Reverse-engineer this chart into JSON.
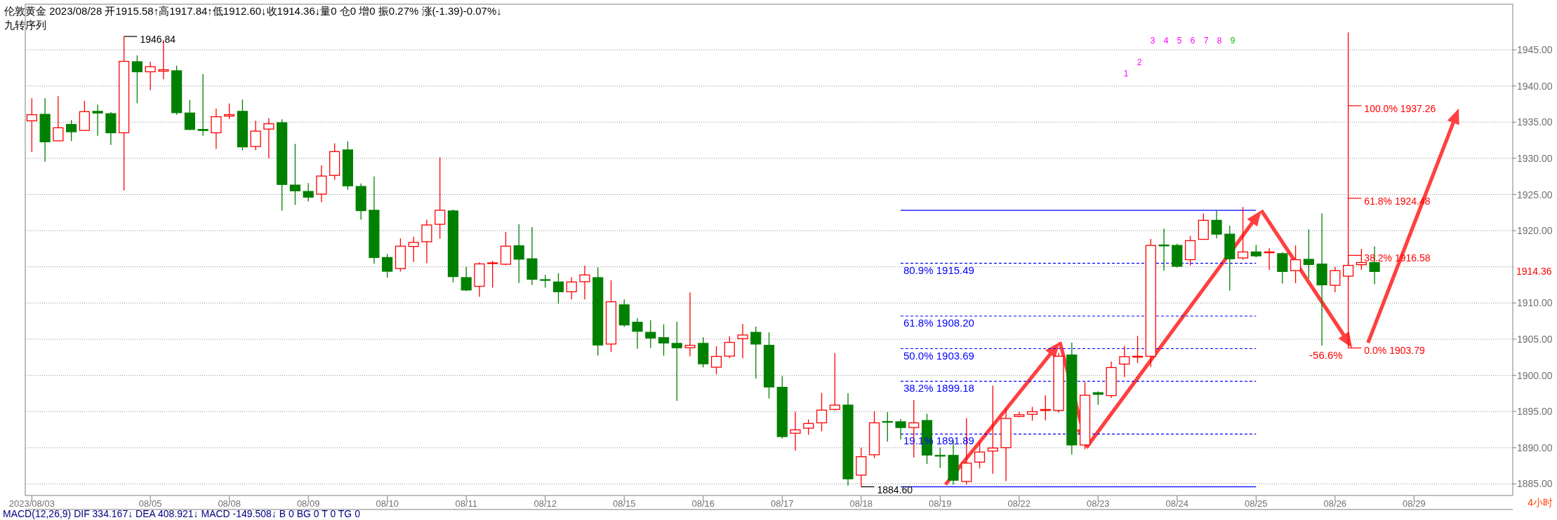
{
  "chart_data": {
    "type": "candlestick",
    "title": "伦敦黄金 2023/08/28 开1915.58↑高1917.84↑低1912.60↓收1914.36↓量0 仓0 增0 振0.27% 涨(-1.39)-0.07%↓",
    "subtitle": "九转序列",
    "categories": [
      "2023/08/03",
      null,
      null,
      null,
      null,
      null,
      null,
      null,
      null,
      "08/05",
      null,
      null,
      null,
      null,
      null,
      "08/08",
      null,
      null,
      null,
      null,
      null,
      "08/09",
      null,
      null,
      null,
      null,
      null,
      "08/10",
      null,
      null,
      null,
      null,
      null,
      "08/11",
      null,
      null,
      null,
      null,
      null,
      "08/12",
      null,
      null,
      null,
      null,
      null,
      "08/15",
      null,
      null,
      null,
      null,
      null,
      "08/16",
      null,
      null,
      null,
      null,
      null,
      "08/17",
      null,
      null,
      null,
      null,
      null,
      "08/18",
      null,
      null,
      null,
      null,
      null,
      "08/19",
      null,
      null,
      null,
      null,
      null,
      "08/22",
      null,
      null,
      null,
      null,
      null,
      "08/23",
      null,
      null,
      null,
      null,
      null,
      "08/24",
      null,
      null,
      null,
      null,
      null,
      "08/25",
      null,
      null,
      null,
      null,
      null,
      "08/26",
      null,
      null,
      null,
      null,
      null,
      "08/29",
      null,
      null,
      null,
      null,
      null,
      null,
      null
    ],
    "ohlc": [
      [
        1935.19,
        1938.3,
        1930.89,
        1936.03
      ],
      [
        1936.08,
        1938.3,
        1929.54,
        1932.28
      ],
      [
        1932.42,
        1938.58,
        1932.42,
        1934.22
      ],
      [
        1934.68,
        1935.29,
        1932.37,
        1933.67
      ],
      [
        1933.85,
        1937.93,
        1933.85,
        1936.45
      ],
      [
        1936.49,
        1937.42,
        1933.11,
        1936.26
      ],
      [
        1936.17,
        1936.4,
        1931.86,
        1933.53
      ],
      [
        1933.53,
        1946.84,
        1925.56,
        1943.4
      ],
      [
        1943.35,
        1944.23,
        1937.6,
        1941.96
      ],
      [
        1941.96,
        1943.35,
        1939.41,
        1942.66
      ],
      [
        1942.05,
        1946.32,
        1940.94,
        1942.24
      ],
      [
        1942.1,
        1942.79,
        1936.03,
        1936.31
      ],
      [
        1936.26,
        1938.07,
        1933.9,
        1933.99
      ],
      [
        1933.99,
        1941.64,
        1933.11,
        1933.85
      ],
      [
        1933.53,
        1936.86,
        1931.3,
        1935.75
      ],
      [
        1935.84,
        1937.56,
        1935.43,
        1936.03
      ],
      [
        1936.49,
        1938.11,
        1931.12,
        1931.58
      ],
      [
        1931.63,
        1935.19,
        1931.12,
        1933.76
      ],
      [
        1934.04,
        1935.57,
        1930.0,
        1934.78
      ],
      [
        1934.92,
        1935.38,
        1922.77,
        1926.39
      ],
      [
        1926.3,
        1931.99,
        1923.56,
        1925.51
      ],
      [
        1925.42,
        1926.58,
        1924.03,
        1924.63
      ],
      [
        1925.05,
        1929.03,
        1923.93,
        1927.55
      ],
      [
        1927.64,
        1932.08,
        1927.04,
        1930.93
      ],
      [
        1931.16,
        1932.32,
        1925.65,
        1926.2
      ],
      [
        1926.11,
        1926.53,
        1921.52,
        1922.77
      ],
      [
        1922.82,
        1927.5,
        1915.41,
        1916.29
      ],
      [
        1916.29,
        1916.8,
        1913.51,
        1914.39
      ],
      [
        1914.76,
        1918.93,
        1914.34,
        1917.86
      ],
      [
        1917.82,
        1919.16,
        1915.69,
        1918.38
      ],
      [
        1918.47,
        1921.52,
        1915.5,
        1920.79
      ],
      [
        1920.88,
        1930.1,
        1918.88,
        1922.82
      ],
      [
        1922.73,
        1922.92,
        1912.86,
        1913.65
      ],
      [
        1913.51,
        1914.99,
        1911.66,
        1911.8
      ],
      [
        1912.31,
        1915.64,
        1910.87,
        1915.41
      ],
      [
        1915.45,
        1915.82,
        1912.12,
        1915.55
      ],
      [
        1915.36,
        1919.81,
        1915.22,
        1917.86
      ],
      [
        1917.91,
        1920.88,
        1912.77,
        1916.06
      ],
      [
        1916.11,
        1920.51,
        1912.49,
        1913.28
      ],
      [
        1913.23,
        1913.88,
        1912.12,
        1913.14
      ],
      [
        1912.91,
        1914.13,
        1909.89,
        1911.56
      ],
      [
        1911.56,
        1913.58,
        1910.49,
        1912.91
      ],
      [
        1912.95,
        1915.15,
        1910.49,
        1913.88
      ],
      [
        1913.51,
        1914.94,
        1902.76,
        1904.19
      ],
      [
        1904.33,
        1913.14,
        1903.22,
        1910.17
      ],
      [
        1909.75,
        1910.49,
        1906.69,
        1906.97
      ],
      [
        1907.34,
        1907.94,
        1903.68,
        1906.09
      ],
      [
        1905.95,
        1907.62,
        1903.78,
        1905.16
      ],
      [
        1905.21,
        1907.06,
        1902.71,
        1904.47
      ],
      [
        1904.42,
        1907.43,
        1896.47,
        1903.82
      ],
      [
        1903.82,
        1911.46,
        1902.62,
        1904.15
      ],
      [
        1904.42,
        1905.26,
        1901.09,
        1901.6
      ],
      [
        1901.13,
        1904.01,
        1900.16,
        1902.62
      ],
      [
        1902.66,
        1905.4,
        1902.39,
        1904.56
      ],
      [
        1905.07,
        1907.11,
        1902.39,
        1905.58
      ],
      [
        1905.95,
        1906.74,
        1899.57,
        1904.33
      ],
      [
        1904.15,
        1905.95,
        1896.82,
        1898.4
      ],
      [
        1898.35,
        1899.89,
        1891.26,
        1891.54
      ],
      [
        1892.0,
        1894.97,
        1889.59,
        1892.47
      ],
      [
        1892.7,
        1893.9,
        1891.77,
        1893.35
      ],
      [
        1893.44,
        1897.57,
        1892.28,
        1895.2
      ],
      [
        1895.29,
        1903.08,
        1895.15,
        1895.89
      ],
      [
        1895.89,
        1897.52,
        1884.77,
        1885.7
      ],
      [
        1886.21,
        1890.01,
        1884.6,
        1888.76
      ],
      [
        1889.03,
        1895.06,
        1888.57,
        1893.44
      ],
      [
        1893.62,
        1894.92,
        1890.85,
        1893.53
      ],
      [
        1893.58,
        1893.95,
        1891.12,
        1892.79
      ],
      [
        1892.79,
        1896.59,
        1888.66,
        1893.44
      ],
      [
        1893.76,
        1894.69,
        1887.77,
        1888.99
      ],
      [
        1888.94,
        1890.01,
        1887.19,
        1888.85
      ],
      [
        1888.94,
        1890.99,
        1884.91,
        1885.51
      ],
      [
        1885.33,
        1894.09,
        1884.91,
        1887.87
      ],
      [
        1888.01,
        1890.8,
        1887.14,
        1889.4
      ],
      [
        1889.54,
        1898.59,
        1886.4,
        1889.96
      ],
      [
        1890.01,
        1895.43,
        1885.38,
        1894.04
      ],
      [
        1894.32,
        1894.98,
        1894.2,
        1894.56
      ],
      [
        1894.62,
        1895.64,
        1893.73,
        1894.98
      ],
      [
        1895.16,
        1897.25,
        1893.79,
        1895.28
      ],
      [
        1895.16,
        1903.12,
        1894.86,
        1902.64
      ],
      [
        1902.82,
        1904.55,
        1889.06,
        1890.38
      ],
      [
        1890.38,
        1899.05,
        1889.78,
        1897.25
      ],
      [
        1897.61,
        1897.79,
        1895.94,
        1897.38
      ],
      [
        1897.2,
        1901.92,
        1896.9,
        1901.08
      ],
      [
        1901.56,
        1904.08,
        1899.77,
        1902.58
      ],
      [
        1902.52,
        1905.45,
        1901.68,
        1902.64
      ],
      [
        1902.64,
        1918.86,
        1901.14,
        1917.96
      ],
      [
        1918.02,
        1920.29,
        1914.48,
        1917.9
      ],
      [
        1917.96,
        1918.2,
        1914.9,
        1915.08
      ],
      [
        1915.99,
        1919.28,
        1915.2,
        1918.62
      ],
      [
        1918.8,
        1922.39,
        1918.8,
        1921.43
      ],
      [
        1921.43,
        1922.81,
        1918.92,
        1919.52
      ],
      [
        1919.52,
        1920.71,
        1911.73,
        1916.11
      ],
      [
        1916.23,
        1923.28,
        1916.0,
        1917.06
      ],
      [
        1917.06,
        1918.02,
        1916.3,
        1916.52
      ],
      [
        1916.95,
        1917.6,
        1914.6,
        1917.06
      ],
      [
        1916.82,
        1917.0,
        1912.69,
        1914.36
      ],
      [
        1914.48,
        1917.96,
        1912.75,
        1915.99
      ],
      [
        1916.04,
        1920.17,
        1913.41,
        1915.32
      ],
      [
        1915.38,
        1922.39,
        1904.14,
        1912.51
      ],
      [
        1912.45,
        1915.0,
        1911.49,
        1914.48
      ],
      [
        1913.71,
        1916.0,
        1913.3,
        1915.2
      ],
      [
        1915.3,
        1917.48,
        1914.6,
        1915.6
      ],
      [
        1915.58,
        1917.84,
        1912.6,
        1914.36
      ],
      null,
      null,
      null,
      null,
      null,
      null,
      null,
      null,
      null,
      null
    ],
    "series": [
      {
        "type": "line",
        "name": "1946.84",
        "color": "#000000",
        "values": [
          null,
          null,
          null,
          null,
          null,
          null,
          null,
          1946.84,
          1946.84,
          null,
          null,
          null,
          null,
          null,
          null,
          null,
          null,
          null,
          null,
          null,
          null,
          null,
          null,
          null,
          null,
          null,
          null,
          null,
          null,
          null,
          null,
          null,
          null,
          null,
          null,
          null,
          null,
          null,
          null,
          null,
          null,
          null,
          null,
          null,
          null,
          null,
          null,
          null,
          null,
          null,
          null,
          null,
          null,
          null,
          null,
          null,
          null,
          null,
          null,
          null,
          null,
          null,
          null,
          null,
          null,
          null,
          null,
          null,
          null,
          null,
          null,
          null,
          null,
          null,
          null,
          null,
          null,
          null,
          null,
          null,
          null,
          null,
          null,
          null,
          null,
          null,
          null,
          null,
          null,
          null,
          null,
          null,
          null,
          null,
          null,
          null,
          null,
          null,
          null,
          null,
          null,
          null,
          null,
          null,
          null,
          null,
          null,
          null,
          null,
          null,
          null,
          null,
          null
        ]
      },
      {
        "type": "line",
        "name": "1884.60",
        "color": "#000000",
        "values": [
          null,
          null,
          null,
          null,
          null,
          null,
          null,
          null,
          null,
          null,
          null,
          null,
          null,
          null,
          null,
          null,
          null,
          null,
          null,
          null,
          null,
          null,
          null,
          null,
          null,
          null,
          null,
          null,
          null,
          null,
          null,
          null,
          null,
          null,
          null,
          null,
          null,
          null,
          null,
          null,
          null,
          null,
          null,
          null,
          null,
          null,
          null,
          null,
          null,
          null,
          null,
          null,
          null,
          null,
          null,
          null,
          null,
          null,
          null,
          null,
          null,
          null,
          null,
          1884.6,
          1884.6,
          null,
          null,
          null,
          null,
          null,
          null,
          null,
          null,
          null,
          null,
          null,
          null,
          null,
          null,
          null,
          null,
          null,
          null,
          null,
          null,
          null,
          null,
          null,
          null,
          null,
          null,
          null,
          null,
          null,
          null,
          null,
          null,
          null,
          null,
          null,
          null,
          null,
          null,
          null,
          null,
          null,
          null,
          null,
          null,
          null,
          null,
          null,
          null
        ]
      },
      {
        "type": "line",
        "color": "#0000ff",
        "values": [
          null,
          null,
          null,
          null,
          null,
          null,
          null,
          null,
          null,
          null,
          null,
          null,
          null,
          null,
          null,
          null,
          null,
          null,
          null,
          null,
          null,
          null,
          null,
          null,
          null,
          null,
          null,
          null,
          null,
          null,
          null,
          null,
          null,
          null,
          null,
          null,
          null,
          null,
          null,
          null,
          null,
          null,
          null,
          null,
          null,
          null,
          null,
          null,
          null,
          null,
          null,
          null,
          null,
          null,
          null,
          null,
          null,
          null,
          null,
          null,
          null,
          null,
          null,
          null,
          null,
          null,
          1922.8,
          null,
          null,
          null,
          null,
          null,
          null,
          null,
          null,
          null,
          null,
          null,
          null,
          null,
          null,
          null,
          null,
          null,
          null,
          null,
          null,
          null,
          null,
          null,
          null,
          null,
          null,
          1922.8,
          null,
          null,
          null,
          null,
          null,
          null,
          null,
          null,
          null,
          null,
          null,
          null,
          null,
          null,
          null,
          null,
          null,
          null,
          null
        ]
      },
      {
        "type": "line",
        "color": "#0000ff",
        "values": [
          null,
          null,
          null,
          null,
          null,
          null,
          null,
          null,
          null,
          null,
          null,
          null,
          null,
          null,
          null,
          null,
          null,
          null,
          null,
          null,
          null,
          null,
          null,
          null,
          null,
          null,
          null,
          null,
          null,
          null,
          null,
          null,
          null,
          null,
          null,
          null,
          null,
          null,
          null,
          null,
          null,
          null,
          null,
          null,
          null,
          null,
          null,
          null,
          null,
          null,
          null,
          null,
          null,
          null,
          null,
          null,
          null,
          null,
          null,
          null,
          null,
          null,
          null,
          null,
          null,
          null,
          1884.6,
          null,
          null,
          null,
          null,
          null,
          null,
          null,
          null,
          null,
          null,
          null,
          null,
          null,
          null,
          null,
          null,
          null,
          null,
          null,
          null,
          null,
          null,
          null,
          null,
          null,
          null,
          1884.6,
          null,
          null,
          null,
          null,
          null,
          null,
          null,
          null,
          null,
          null,
          null,
          null,
          null,
          null,
          null,
          null,
          null,
          null,
          null
        ]
      },
      {
        "type": "line",
        "name": "80.9% 1915.49",
        "color": "#0000ff",
        "line_style": "dashed",
        "values": [
          null,
          null,
          null,
          null,
          null,
          null,
          null,
          null,
          null,
          null,
          null,
          null,
          null,
          null,
          null,
          null,
          null,
          null,
          null,
          null,
          null,
          null,
          null,
          null,
          null,
          null,
          null,
          null,
          null,
          null,
          null,
          null,
          null,
          null,
          null,
          null,
          null,
          null,
          null,
          null,
          null,
          null,
          null,
          null,
          null,
          null,
          null,
          null,
          null,
          null,
          null,
          null,
          null,
          null,
          null,
          null,
          null,
          null,
          null,
          null,
          null,
          null,
          null,
          null,
          null,
          null,
          1915.49,
          null,
          null,
          null,
          null,
          null,
          null,
          null,
          null,
          null,
          null,
          null,
          null,
          null,
          null,
          null,
          null,
          null,
          null,
          null,
          null,
          null,
          null,
          null,
          null,
          null,
          null,
          1915.49,
          null,
          null,
          null,
          null,
          null,
          null,
          null,
          null,
          null,
          null,
          null,
          null,
          null,
          null,
          null,
          null,
          null,
          null,
          null
        ]
      },
      {
        "type": "line",
        "name": "61.8% 1908.20",
        "color": "#0000ff",
        "line_style": "dashed",
        "values": [
          null,
          null,
          null,
          null,
          null,
          null,
          null,
          null,
          null,
          null,
          null,
          null,
          null,
          null,
          null,
          null,
          null,
          null,
          null,
          null,
          null,
          null,
          null,
          null,
          null,
          null,
          null,
          null,
          null,
          null,
          null,
          null,
          null,
          null,
          null,
          null,
          null,
          null,
          null,
          null,
          null,
          null,
          null,
          null,
          null,
          null,
          null,
          null,
          null,
          null,
          null,
          null,
          null,
          null,
          null,
          null,
          null,
          null,
          null,
          null,
          null,
          null,
          null,
          null,
          null,
          null,
          1908.2,
          null,
          null,
          null,
          null,
          null,
          null,
          null,
          null,
          null,
          null,
          null,
          null,
          null,
          null,
          null,
          null,
          null,
          null,
          null,
          null,
          null,
          null,
          null,
          null,
          null,
          null,
          1908.2,
          null,
          null,
          null,
          null,
          null,
          null,
          null,
          null,
          null,
          null,
          null,
          null,
          null,
          null,
          null,
          null,
          null,
          null,
          null
        ]
      },
      {
        "type": "line",
        "name": "50.0% 1903.69",
        "color": "#0000ff",
        "line_style": "dashed",
        "values": [
          null,
          null,
          null,
          null,
          null,
          null,
          null,
          null,
          null,
          null,
          null,
          null,
          null,
          null,
          null,
          null,
          null,
          null,
          null,
          null,
          null,
          null,
          null,
          null,
          null,
          null,
          null,
          null,
          null,
          null,
          null,
          null,
          null,
          null,
          null,
          null,
          null,
          null,
          null,
          null,
          null,
          null,
          null,
          null,
          null,
          null,
          null,
          null,
          null,
          null,
          null,
          null,
          null,
          null,
          null,
          null,
          null,
          null,
          null,
          null,
          null,
          null,
          null,
          null,
          null,
          null,
          1903.69,
          null,
          null,
          null,
          null,
          null,
          null,
          null,
          null,
          null,
          null,
          null,
          null,
          null,
          null,
          null,
          null,
          null,
          null,
          null,
          null,
          null,
          null,
          null,
          null,
          null,
          null,
          1903.69,
          null,
          null,
          null,
          null,
          null,
          null,
          null,
          null,
          null,
          null,
          null,
          null,
          null,
          null,
          null,
          null,
          null,
          null,
          null
        ]
      },
      {
        "type": "line",
        "name": "38.2% 1899.18",
        "color": "#0000ff",
        "line_style": "dashed",
        "values": [
          null,
          null,
          null,
          null,
          null,
          null,
          null,
          null,
          null,
          null,
          null,
          null,
          null,
          null,
          null,
          null,
          null,
          null,
          null,
          null,
          null,
          null,
          null,
          null,
          null,
          null,
          null,
          null,
          null,
          null,
          null,
          null,
          null,
          null,
          null,
          null,
          null,
          null,
          null,
          null,
          null,
          null,
          null,
          null,
          null,
          null,
          null,
          null,
          null,
          null,
          null,
          null,
          null,
          null,
          null,
          null,
          null,
          null,
          null,
          null,
          null,
          null,
          null,
          null,
          null,
          null,
          1899.18,
          null,
          null,
          null,
          null,
          null,
          null,
          null,
          null,
          null,
          null,
          null,
          null,
          null,
          null,
          null,
          null,
          null,
          null,
          null,
          null,
          null,
          null,
          null,
          null,
          null,
          null,
          1899.18,
          null,
          null,
          null,
          null,
          null,
          null,
          null,
          null,
          null,
          null,
          null,
          null,
          null,
          null,
          null,
          null,
          null,
          null,
          null
        ]
      },
      {
        "type": "line",
        "name": "19.1% 1891.89",
        "color": "#0000ff",
        "line_style": "dashed",
        "values": [
          null,
          null,
          null,
          null,
          null,
          null,
          null,
          null,
          null,
          null,
          null,
          null,
          null,
          null,
          null,
          null,
          null,
          null,
          null,
          null,
          null,
          null,
          null,
          null,
          null,
          null,
          null,
          null,
          null,
          null,
          null,
          null,
          null,
          null,
          null,
          null,
          null,
          null,
          null,
          null,
          null,
          null,
          null,
          null,
          null,
          null,
          null,
          null,
          null,
          null,
          null,
          null,
          null,
          null,
          null,
          null,
          null,
          null,
          null,
          null,
          null,
          null,
          null,
          null,
          null,
          null,
          1891.89,
          null,
          null,
          null,
          null,
          null,
          null,
          null,
          null,
          null,
          null,
          null,
          null,
          null,
          null,
          null,
          null,
          null,
          null,
          null,
          null,
          null,
          null,
          null,
          null,
          null,
          null,
          1891.89,
          null,
          null,
          null,
          null,
          null,
          null,
          null,
          null,
          null,
          null,
          null,
          null,
          null,
          null,
          null,
          null,
          null,
          null,
          null
        ]
      },
      {
        "type": "line",
        "name": "100.0% 1937.26",
        "color": "#ff0000",
        "values": [
          null,
          null,
          null,
          null,
          null,
          null,
          null,
          null,
          null,
          null,
          null,
          null,
          null,
          null,
          null,
          null,
          null,
          null,
          null,
          null,
          null,
          null,
          null,
          null,
          null,
          null,
          null,
          null,
          null,
          null,
          null,
          null,
          null,
          null,
          null,
          null,
          null,
          null,
          null,
          null,
          null,
          null,
          null,
          null,
          null,
          null,
          null,
          null,
          null,
          null,
          null,
          null,
          null,
          null,
          null,
          null,
          null,
          null,
          null,
          null,
          null,
          null,
          null,
          null,
          null,
          null,
          null,
          null,
          null,
          null,
          null,
          null,
          null,
          null,
          null,
          null,
          null,
          null,
          null,
          null,
          null,
          null,
          null,
          null,
          null,
          null,
          null,
          null,
          null,
          null,
          null,
          null,
          null,
          null,
          null,
          null,
          null,
          null,
          null,
          null,
          1937.26,
          1937.26,
          null,
          null,
          null,
          null,
          null,
          null,
          null,
          null,
          null,
          null,
          null
        ]
      },
      {
        "type": "line",
        "name": "61.8% 1924.48",
        "color": "#ff0000",
        "values": [
          null,
          null,
          null,
          null,
          null,
          null,
          null,
          null,
          null,
          null,
          null,
          null,
          null,
          null,
          null,
          null,
          null,
          null,
          null,
          null,
          null,
          null,
          null,
          null,
          null,
          null,
          null,
          null,
          null,
          null,
          null,
          null,
          null,
          null,
          null,
          null,
          null,
          null,
          null,
          null,
          null,
          null,
          null,
          null,
          null,
          null,
          null,
          null,
          null,
          null,
          null,
          null,
          null,
          null,
          null,
          null,
          null,
          null,
          null,
          null,
          null,
          null,
          null,
          null,
          null,
          null,
          null,
          null,
          null,
          null,
          null,
          null,
          null,
          null,
          null,
          null,
          null,
          null,
          null,
          null,
          null,
          null,
          null,
          null,
          null,
          null,
          null,
          null,
          null,
          null,
          null,
          null,
          null,
          null,
          null,
          null,
          null,
          null,
          null,
          null,
          1924.48,
          1924.48,
          null,
          null,
          null,
          null,
          null,
          null,
          null,
          null,
          null,
          null,
          null
        ]
      },
      {
        "type": "line",
        "name": "38.2% 1916.58",
        "color": "#ff0000",
        "values": [
          null,
          null,
          null,
          null,
          null,
          null,
          null,
          null,
          null,
          null,
          null,
          null,
          null,
          null,
          null,
          null,
          null,
          null,
          null,
          null,
          null,
          null,
          null,
          null,
          null,
          null,
          null,
          null,
          null,
          null,
          null,
          null,
          null,
          null,
          null,
          null,
          null,
          null,
          null,
          null,
          null,
          null,
          null,
          null,
          null,
          null,
          null,
          null,
          null,
          null,
          null,
          null,
          null,
          null,
          null,
          null,
          null,
          null,
          null,
          null,
          null,
          null,
          null,
          null,
          null,
          null,
          null,
          null,
          null,
          null,
          null,
          null,
          null,
          null,
          null,
          null,
          null,
          null,
          null,
          null,
          null,
          null,
          null,
          null,
          null,
          null,
          null,
          null,
          null,
          null,
          null,
          null,
          null,
          null,
          null,
          null,
          null,
          null,
          null,
          null,
          1916.58,
          1916.58,
          null,
          null,
          null,
          null,
          null,
          null,
          null,
          null,
          null,
          null,
          null
        ]
      },
      {
        "type": "line",
        "name": "0.0% 1903.79",
        "color": "#ff0000",
        "values": [
          null,
          null,
          null,
          null,
          null,
          null,
          null,
          null,
          null,
          null,
          null,
          null,
          null,
          null,
          null,
          null,
          null,
          null,
          null,
          null,
          null,
          null,
          null,
          null,
          null,
          null,
          null,
          null,
          null,
          null,
          null,
          null,
          null,
          null,
          null,
          null,
          null,
          null,
          null,
          null,
          null,
          null,
          null,
          null,
          null,
          null,
          null,
          null,
          null,
          null,
          null,
          null,
          null,
          null,
          null,
          null,
          null,
          null,
          null,
          null,
          null,
          null,
          null,
          null,
          null,
          null,
          null,
          null,
          null,
          null,
          null,
          null,
          null,
          null,
          null,
          null,
          null,
          null,
          null,
          null,
          null,
          null,
          null,
          null,
          null,
          null,
          null,
          null,
          null,
          null,
          null,
          null,
          null,
          null,
          null,
          null,
          null,
          null,
          null,
          null,
          1903.79,
          1903.79,
          null,
          null,
          null,
          null,
          null,
          null,
          null,
          null,
          null,
          null,
          null
        ],
        "errors": [
          null,
          null,
          null,
          null,
          null,
          null,
          null,
          null,
          null,
          null,
          null,
          null,
          null,
          null,
          null,
          null,
          null,
          null,
          null,
          null,
          null,
          null,
          null,
          null,
          null,
          null,
          null,
          null,
          null,
          null,
          null,
          null,
          null,
          null,
          null,
          null,
          null,
          null,
          null,
          null,
          null,
          null,
          null,
          null,
          null,
          null,
          null,
          null,
          null,
          null,
          null,
          null,
          null,
          null,
          null,
          null,
          null,
          null,
          null,
          null,
          null,
          null,
          null,
          null,
          null,
          null,
          null,
          null,
          null,
          null,
          null,
          null,
          null,
          null,
          null,
          null,
          null,
          null,
          null,
          null,
          null,
          null,
          null,
          null,
          null,
          null,
          null,
          null,
          null,
          null,
          null,
          null,
          null,
          null,
          null,
          null,
          null,
          null,
          null,
          null,
          [
            1903.79,
            1947.4
          ],
          null,
          null,
          null,
          null,
          null,
          null,
          null,
          null,
          null,
          null,
          null,
          null
        ]
      }
    ],
    "annotations": [
      "1",
      "2",
      "3",
      "4",
      "5",
      "6",
      "7",
      "8",
      "9",
      "1914.36",
      "MACD(12,26,9)  DIF 334.167↓  DEA 408.921↓  MACD -149.508↓  B 0  BG 0  T 0  TG 0",
      "4小时",
      "-56.6%"
    ],
    "ylim": [
      1883.4,
      1951.3
    ],
    "yticks": [
      {
        "value": 1885,
        "label": "1885.00"
      },
      {
        "value": 1890,
        "label": "1890.00"
      },
      {
        "value": 1895,
        "label": "1895.00"
      },
      {
        "value": 1900,
        "label": "1900.00"
      },
      {
        "value": 1905,
        "label": "1905.00"
      },
      {
        "value": 1910,
        "label": "1910.00"
      },
      {
        "value": 1915,
        "label": null
      },
      {
        "value": 1920,
        "label": "1920.00"
      },
      {
        "value": 1925,
        "label": "1925.00"
      },
      {
        "value": 1930,
        "label": "1930.00"
      },
      {
        "value": 1935,
        "label": "1935.00"
      },
      {
        "value": 1940,
        "label": "1940.00"
      },
      {
        "value": 1945,
        "label": "1945.00"
      }
    ],
    "grid": "y"
  }
}
